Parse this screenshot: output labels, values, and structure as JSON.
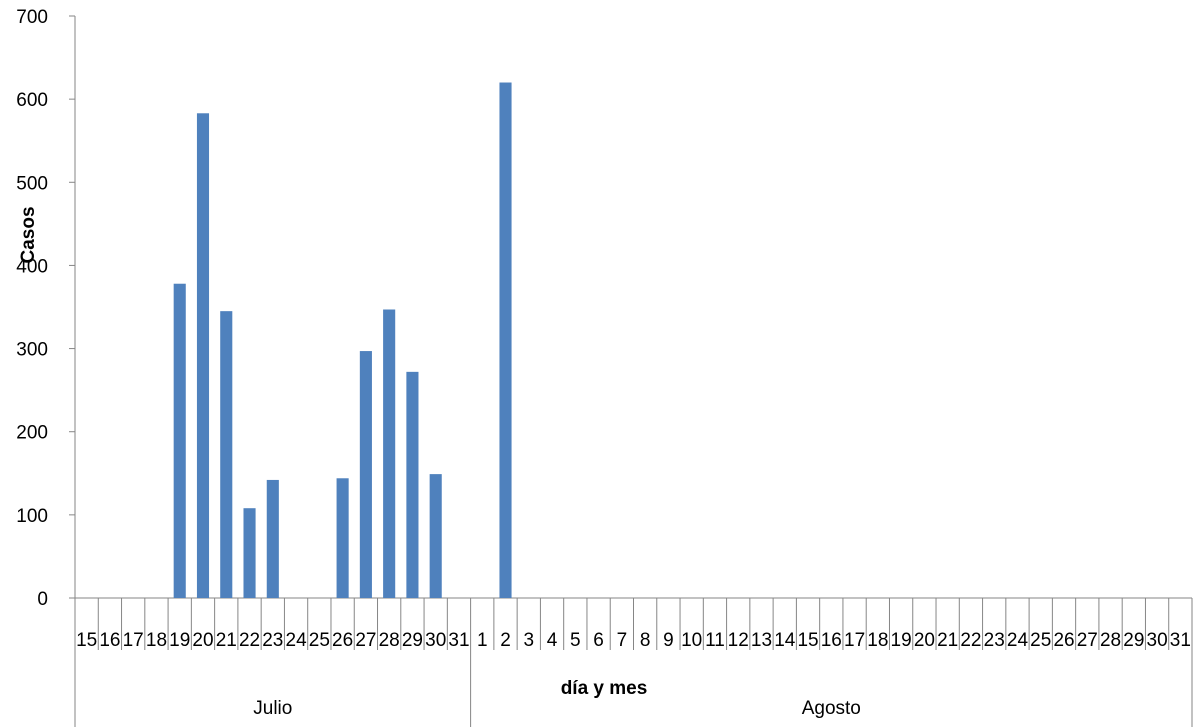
{
  "chart_data": {
    "type": "bar",
    "title": "",
    "xlabel": "día y mes",
    "ylabel": "Casos",
    "ylim": [
      0,
      700
    ],
    "yticks": [
      0,
      100,
      200,
      300,
      400,
      500,
      600,
      700
    ],
    "grid": false,
    "legend": "none",
    "bar_color": "#4F81BD",
    "months": [
      {
        "name": "Julio",
        "days": [
          "15",
          "16",
          "17",
          "18",
          "19",
          "20",
          "21",
          "22",
          "23",
          "24",
          "25",
          "26",
          "27",
          "28",
          "29",
          "30",
          "31"
        ]
      },
      {
        "name": "Agosto",
        "days": [
          "1",
          "2",
          "3",
          "4",
          "5",
          "6",
          "7",
          "8",
          "9",
          "10",
          "11",
          "12",
          "13",
          "14",
          "15",
          "16",
          "17",
          "18",
          "19",
          "20",
          "21",
          "22",
          "23",
          "24",
          "25",
          "26",
          "27",
          "28",
          "29",
          "30",
          "31"
        ]
      }
    ],
    "categories": [
      "15",
      "16",
      "17",
      "18",
      "19",
      "20",
      "21",
      "22",
      "23",
      "24",
      "25",
      "26",
      "27",
      "28",
      "29",
      "30",
      "31",
      "1",
      "2",
      "3",
      "4",
      "5",
      "6",
      "7",
      "8",
      "9",
      "10",
      "11",
      "12",
      "13",
      "14",
      "15",
      "16",
      "17",
      "18",
      "19",
      "20",
      "21",
      "22",
      "23",
      "24",
      "25",
      "26",
      "27",
      "28",
      "29",
      "30",
      "31"
    ],
    "values": [
      0,
      0,
      0,
      0,
      378,
      583,
      345,
      108,
      142,
      0,
      0,
      144,
      297,
      347,
      272,
      149,
      0,
      0,
      620,
      0,
      0,
      0,
      0,
      0,
      0,
      0,
      0,
      0,
      0,
      0,
      0,
      0,
      0,
      0,
      0,
      0,
      0,
      0,
      0,
      0,
      0,
      0,
      0,
      0,
      0,
      0,
      0,
      0
    ]
  }
}
